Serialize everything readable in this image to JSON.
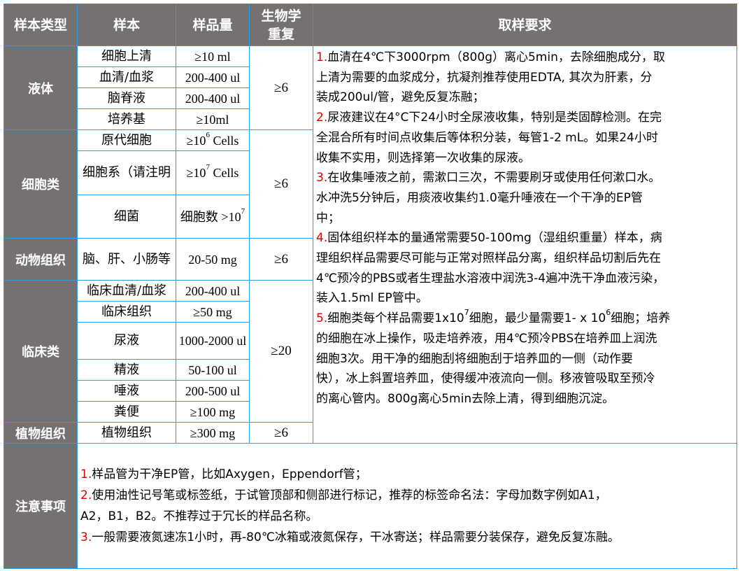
{
  "headers": [
    "样本类型",
    "样本",
    "样品量",
    "生物学重复",
    "取样要求"
  ],
  "groups": [
    {
      "category": "液体",
      "replicate": "≥6",
      "rows": [
        {
          "name": "细胞上清",
          "qty": "≥10 ml"
        },
        {
          "name": "血清/血浆",
          "qty": "200-400 ul"
        },
        {
          "name": "脑脊液",
          "qty": "200-400 ul"
        },
        {
          "name": "培养基",
          "qty": "≥10ml"
        }
      ]
    },
    {
      "category": "细胞类",
      "replicate": "≥6",
      "rows": [
        {
          "name": "原代细胞",
          "qty_pre": "≥10",
          "qty_sup": "6",
          "qty_post": " Cells"
        },
        {
          "name": "细胞系（请注明",
          "qty_pre": "≥10",
          "qty_sup": "7",
          "qty_post": " Cells"
        },
        {
          "name": "细菌",
          "qty_pre": "细胞数 >10",
          "qty_sup": "7",
          "qty_post": ""
        }
      ]
    },
    {
      "category": "动物组织",
      "replicate": "≥6",
      "rows": [
        {
          "name": "脑、肝、小肠等",
          "qty": "20-50 mg"
        }
      ]
    },
    {
      "category": "临床类",
      "replicate": "≥20",
      "rows": [
        {
          "name": "临床血清/血浆",
          "qty": "200-400 ul"
        },
        {
          "name": "临床组织",
          "qty": "≥50 mg"
        },
        {
          "name": "尿液",
          "qty": "1000-2000 ul"
        },
        {
          "name": "精液",
          "qty": "50-100 ul"
        },
        {
          "name": "唾液",
          "qty": "200-500 ul"
        },
        {
          "name": "粪便",
          "qty": "≥100 mg"
        }
      ]
    },
    {
      "category": "植物组织",
      "replicate": "≥6",
      "rows": [
        {
          "name": "植物组织",
          "qty": "≥300 mg"
        }
      ]
    }
  ],
  "requirements": [
    {
      "num": "1.",
      "lines": [
        "血清在4℃下3000rpm（800g）离心5min，去除细胞成分，取",
        "上清为需要的血浆成分，抗凝剂推荐使用EDTA, 其次为肝素，分",
        "装成200ul/管，避免反复冻融；"
      ]
    },
    {
      "num": "2.",
      "lines": [
        "尿液建议在4°C下24小时全尿液收集，特别是类固醇检测。在完",
        "全混合所有时间点收集后等体积分装，每管1-2 mL。如果24小时",
        "收集不实用，则选择第一次收集的尿液。"
      ]
    },
    {
      "num": "3.",
      "lines": [
        "在收集唾液之前，需漱口三次，不需要刷牙或使用任何漱口水。",
        "水冲洗5分钟后，用痰液收集约1.0毫升唾液在一个干净的EP管",
        "中；"
      ]
    },
    {
      "num": "4.",
      "lines": [
        "固体组织样本的量通常需要50-100mg（湿组织重量）样本，病",
        "理组织样品需要尽可能与正常对照样品分离，组织样品切割后先在",
        "4℃预冷的PBS或者生理盐水溶液中润洗3-4遍冲洗干净血液污染，",
        "装入1.5ml EP管中。"
      ]
    },
    {
      "num": "5.",
      "first": {
        "a": "细胞类每个样品需要1x10",
        "sup1": "7",
        "b": "细胞，最少量需要1- x 10",
        "sup2": "6",
        "c": "细胞；培养"
      },
      "lines": [
        "的细胞在冰上操作，吸走培养液，用4℃预冷PBS在培养皿上润洗",
        "细胞3次。用干净的细胞刮将细胞刮于培养皿的一侧（动作要",
        "快），冰上斜置培养皿，使得缓冲液流向一侧。移液管吸取至预冷",
        "的离心管内。800g离心5min去除上清，得到细胞沉淀。"
      ]
    }
  ],
  "notes": {
    "category": "注意事项",
    "items": [
      {
        "num": "1.",
        "lines": [
          "样品管为干净EP管，比如Axygen，Eppendorf管；"
        ]
      },
      {
        "num": "2.",
        "lines": [
          "使用油性记号笔或标签纸，于试管顶部和侧部进行标记，推荐的标签命名法：字母加数字例如A1，",
          "A2，B1，B2。不推荐过于冗长的样品名称。"
        ]
      },
      {
        "num": "3.",
        "lines": [
          "一般需要液氮速冻1小时，再-80℃冰箱或液氮保存，干冰寄送；样品需要分装保存，避免反复冻融。"
        ]
      }
    ]
  },
  "colors": {
    "header_bg": "#767171",
    "border": "#2f9be3",
    "number": "#e00000"
  }
}
